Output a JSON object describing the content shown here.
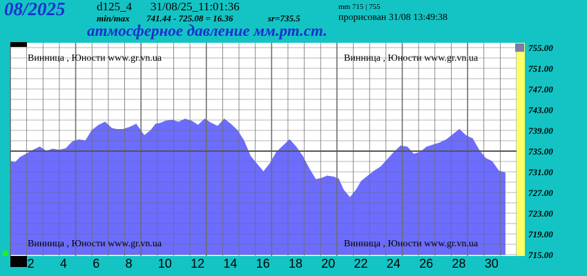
{
  "header": {
    "month": "08/2025",
    "station_code": "d125_4",
    "timestamp": "31/08/25_11:01:36",
    "minmax_label": "min/max",
    "minmax_values": "741.44 - 725.08 = 16.36",
    "sr_value": "sr=735.5",
    "scale_note": "mm 715 | 755",
    "rendered": "прорисован 31/08 13:49:38",
    "title": "атмосферное давление мм.рт.ст."
  },
  "watermarks": {
    "top_left": "Винница , Юности www.gr.vn.ua",
    "top_right": "Винница , Юности www.gr.vn.ua",
    "bottom_left": "Винница , Юности www.gr.vn.ua",
    "bottom_right": "Винница , Юности www.gr.vn.ua"
  },
  "colors": {
    "background": "#14c4c4",
    "plot_background": "#ffffff",
    "fill": "#6c6cff",
    "grid": "#6e6e6e",
    "reference_line": "#555555",
    "right_band": "#ffff66",
    "month_color": "#1b2fcf",
    "title_color": "#1b2fcf"
  },
  "chart_data": {
    "type": "area",
    "title": "атмосферное давление мм.рт.ст.",
    "xlabel": "",
    "ylabel": "",
    "x_unit": "day of month (August 2025)",
    "xlim": [
      1,
      32
    ],
    "ylim": [
      715,
      755
    ],
    "reference_value": 735,
    "x_tick_labels": [
      "2",
      "4",
      "6",
      "8",
      "10",
      "12",
      "14",
      "16",
      "18",
      "20",
      "22",
      "24",
      "26",
      "28",
      "30"
    ],
    "y_tick_labels": [
      "755.00",
      "751.00",
      "747.00",
      "743.00",
      "739.00",
      "735.00",
      "731.00",
      "727.00",
      "723.00",
      "719.00",
      "715.00"
    ],
    "grid": true,
    "series": [
      {
        "x": [
          1.0,
          1.3,
          1.6,
          2.0,
          2.4,
          2.8,
          3.2,
          3.6,
          4.0,
          4.4,
          4.8,
          5.2,
          5.6,
          6.0,
          6.4,
          6.8,
          7.2,
          7.5,
          7.9,
          8.3,
          8.7,
          9.2,
          9.6,
          9.9,
          10.2,
          10.5,
          10.9,
          11.3,
          11.7,
          12.1,
          12.5,
          12.9,
          13.3,
          13.7,
          14.1,
          14.5,
          14.9,
          15.3,
          15.7,
          16.1,
          16.5,
          16.9,
          17.3,
          17.7,
          18.1,
          18.5,
          18.9,
          19.3,
          19.7,
          20.1,
          20.4,
          20.8,
          21.1,
          21.4,
          21.8,
          22.2,
          22.5,
          22.9,
          23.3,
          23.7,
          24.1,
          24.5,
          24.9,
          25.3,
          25.7,
          26.1,
          26.5,
          26.9,
          27.3,
          27.7,
          28.1,
          28.5,
          28.9,
          29.3,
          29.7,
          30.1,
          30.5,
          30.9,
          31.3
        ],
        "y": [
          733,
          732.8,
          733.8,
          734.5,
          735.2,
          735.8,
          735.0,
          735.4,
          735.2,
          735.5,
          736.8,
          737.2,
          737.0,
          739.0,
          740.0,
          740.6,
          739.4,
          739.2,
          739.2,
          739.6,
          740.2,
          738.0,
          739.0,
          740.2,
          740.4,
          740.8,
          741.0,
          740.6,
          741.2,
          740.8,
          740.0,
          741.2,
          740.4,
          739.8,
          741.2,
          740.2,
          739.0,
          737.0,
          734.0,
          732.5,
          731.0,
          732.6,
          734.8,
          736.0,
          737.2,
          735.8,
          734.0,
          731.6,
          729.5,
          729.8,
          730.2,
          730.0,
          729.6,
          727.5,
          726.0,
          727.6,
          729.2,
          730.2,
          731.2,
          732.0,
          733.4,
          734.8,
          736.0,
          735.8,
          734.4,
          734.8,
          735.8,
          736.2,
          736.6,
          737.2,
          738.2,
          739.2,
          738.0,
          737.4,
          735.2,
          733.6,
          733.0,
          731.2,
          730.8
        ]
      }
    ]
  }
}
